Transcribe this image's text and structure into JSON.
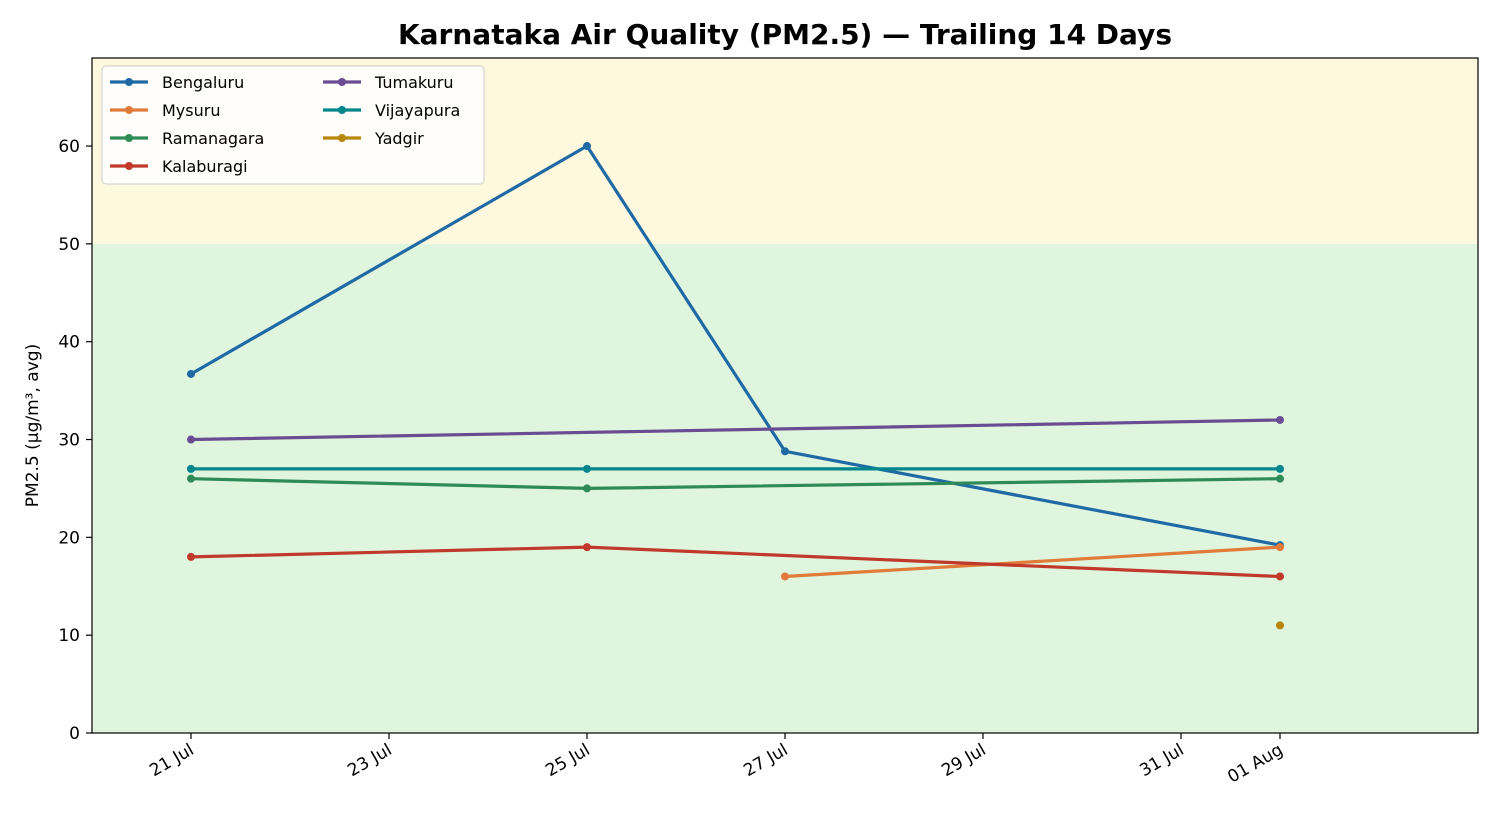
{
  "chart_data": {
    "type": "line",
    "title": "Karnataka Air Quality (PM2.5) — Trailing 14 Days",
    "xlabel": "",
    "ylabel": "PM2.5 (µg/m³, avg)",
    "ylim": [
      0,
      69
    ],
    "xlim": [
      "2024-07-20",
      "2024-08-03"
    ],
    "x_ticks": [
      {
        "date": "2024-07-21",
        "label": "21 Jul"
      },
      {
        "date": "2024-07-23",
        "label": "23 Jul"
      },
      {
        "date": "2024-07-25",
        "label": "25 Jul"
      },
      {
        "date": "2024-07-27",
        "label": "27 Jul"
      },
      {
        "date": "2024-07-29",
        "label": "29 Jul"
      },
      {
        "date": "2024-07-31",
        "label": "31 Jul"
      },
      {
        "date": "2024-08-01",
        "label": "01 Aug"
      }
    ],
    "y_ticks": [
      0,
      10,
      20,
      30,
      40,
      50,
      60
    ],
    "bands": [
      {
        "from": 0,
        "to": 50,
        "color": "#e0f5de"
      },
      {
        "from": 50,
        "to": 69,
        "color": "#fef9de"
      }
    ],
    "grid": false,
    "legend_position": "top-left",
    "series": [
      {
        "name": "Bengaluru",
        "color": "#1f6aa5",
        "points": [
          [
            "2024-07-21",
            36.7
          ],
          [
            "2024-07-25",
            60
          ],
          [
            "2024-07-27",
            28.8
          ],
          [
            "2024-08-01",
            19.2
          ]
        ]
      },
      {
        "name": "Mysuru",
        "color": "#e07b39",
        "points": [
          [
            "2024-07-27",
            16
          ],
          [
            "2024-08-01",
            19
          ]
        ]
      },
      {
        "name": "Ramanagara",
        "color": "#2e8b57",
        "points": [
          [
            "2024-07-21",
            26
          ],
          [
            "2024-07-25",
            25
          ],
          [
            "2024-08-01",
            26
          ]
        ]
      },
      {
        "name": "Kalaburagi",
        "color": "#c0392b",
        "points": [
          [
            "2024-07-21",
            18
          ],
          [
            "2024-07-25",
            19
          ],
          [
            "2024-08-01",
            16
          ]
        ]
      },
      {
        "name": "Tumakuru",
        "color": "#6a4c93",
        "points": [
          [
            "2024-07-21",
            30
          ],
          [
            "2024-08-01",
            32
          ]
        ]
      },
      {
        "name": "Vijayapura",
        "color": "#00868b",
        "points": [
          [
            "2024-07-21",
            27
          ],
          [
            "2024-07-25",
            27
          ],
          [
            "2024-08-01",
            27
          ]
        ]
      },
      {
        "name": "Yadgir",
        "color": "#b8860b",
        "points": [
          [
            "2024-08-01",
            11
          ]
        ]
      }
    ]
  }
}
